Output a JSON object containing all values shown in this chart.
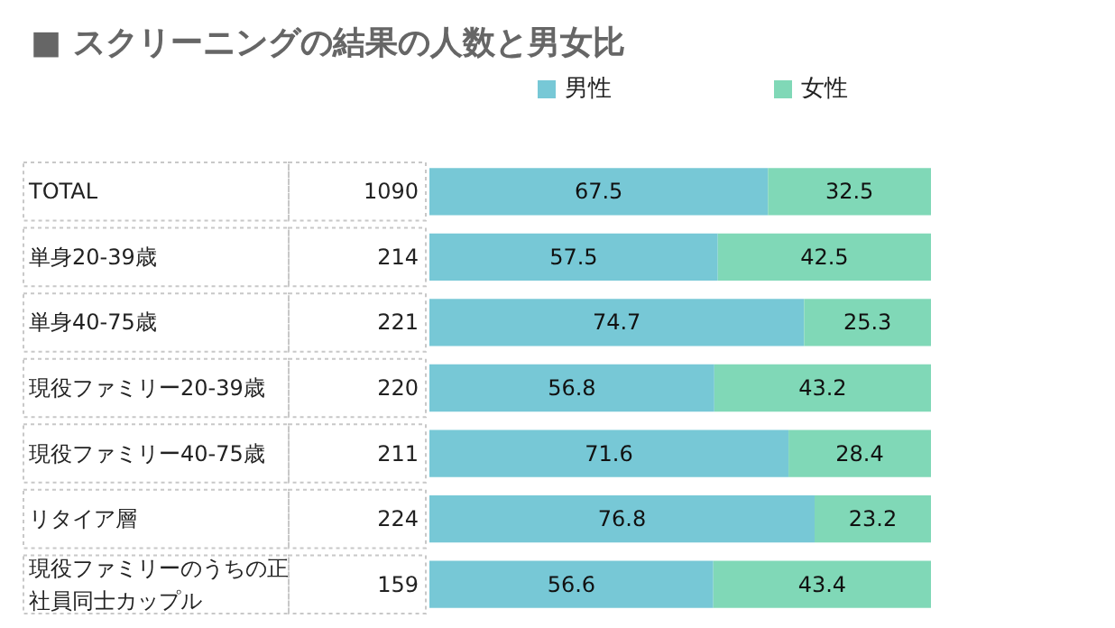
{
  "chart_data": {
    "type": "bar",
    "orientation": "horizontal",
    "stacked": true,
    "title": "■ スクリーニングの結果の人数と男女比",
    "categories": [
      "TOTAL",
      "単身20-39歳",
      "単身40-75歳",
      "現役ファミリー20-39歳",
      "現役ファミリー40-75歳",
      "リタイア層",
      "現役ファミリーのうちの正社員同士カップル"
    ],
    "y2_categories": [
      "1090",
      "214",
      "221",
      "220",
      "211",
      "224",
      "159"
    ],
    "series": [
      {
        "name": "男性",
        "color": "#77c8d6",
        "values": [
          67.5,
          57.5,
          74.7,
          56.8,
          71.6,
          76.8,
          56.6
        ]
      },
      {
        "name": "女性",
        "color": "#80d8b7",
        "values": [
          32.5,
          42.5,
          25.3,
          43.2,
          28.4,
          23.2,
          43.4
        ]
      }
    ],
    "xlim": [
      0,
      100
    ],
    "data_labels": true,
    "legend": "top"
  }
}
